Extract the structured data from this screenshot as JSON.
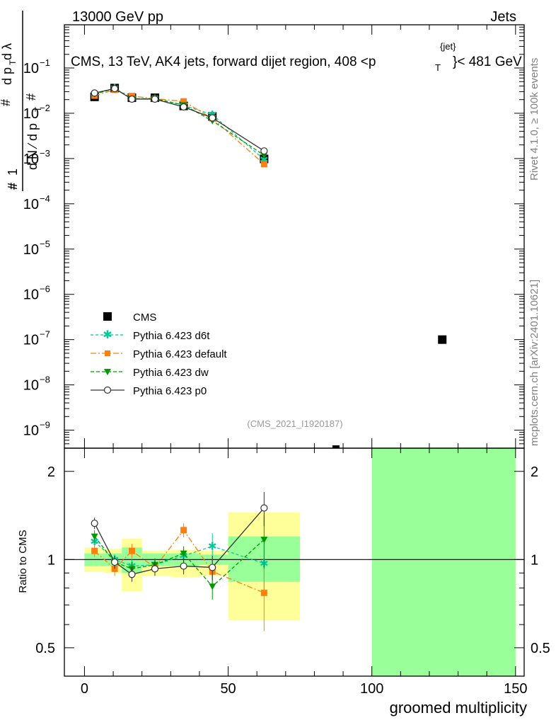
{
  "header": {
    "left": "13000 GeV pp",
    "right": "Jets",
    "subtitle": "CMS, 13 TeV, AK4 jets, forward dijet region, 408 <p_T^{jet}< 481 GeV"
  },
  "side": {
    "rivet": "Rivet 4.1.0, ≥ 100k events",
    "mcplots": "mcplots.cern.ch [arXiv:2401.10621]"
  },
  "watermark": "(CMS_2021_I1920187)",
  "colors": {
    "data": "#000000",
    "d6t": "#00cc99",
    "default": "#ff7f0e",
    "dw": "#009900",
    "p0": "#333333",
    "band_yellow": "#ffff99",
    "band_green": "#99ff99"
  },
  "chart_data": [
    {
      "type": "scatter",
      "panel": "main",
      "title": "CMS, 13 TeV, AK4 jets, forward dijet region, 408 <p_T^{jet}< 481 GeV",
      "ylabel": "1/dN/dp_T  d²N/dp_T dλ",
      "yscale": "log",
      "xlim": [
        -7,
        153
      ],
      "ylim": [
        4e-10,
        0.9
      ],
      "ytick_labels": [
        "10^{-9}",
        "10^{-8}",
        "10^{-7}",
        "10^{-6}",
        "10^{-5}",
        "10^{-4}",
        "10^{-3}",
        "10^{-2}",
        "10^{-1}"
      ],
      "ytick_values": [
        1e-09,
        1e-08,
        1e-07,
        1e-06,
        1e-05,
        0.0001,
        0.001,
        0.01,
        0.1
      ],
      "legend": [
        "CMS",
        "Pythia 6.423 d6t",
        "Pythia 6.423 default",
        "Pythia 6.423 dw",
        "Pythia 6.423 p0"
      ],
      "series": [
        {
          "name": "CMS",
          "style": "square",
          "x": [
            3.5,
            10.5,
            16.5,
            24.5,
            34.5,
            44.5,
            62.5,
            87.5,
            124.5
          ],
          "y": [
            0.023,
            0.036,
            0.022,
            0.022,
            0.0145,
            0.0085,
            0.00098,
            3.6e-10,
            1e-07
          ]
        },
        {
          "name": "Pythia 6.423 d6t",
          "style": "star",
          "dash": "4,3",
          "x": [
            3.5,
            10.5,
            16.5,
            24.5,
            34.5,
            44.5,
            62.5
          ],
          "y": [
            0.027,
            0.036,
            0.021,
            0.021,
            0.015,
            0.0093,
            0.00095
          ]
        },
        {
          "name": "Pythia 6.423 default",
          "style": "fsquare",
          "dash": "8,3,2,3",
          "x": [
            3.5,
            10.5,
            16.5,
            24.5,
            34.5,
            44.5,
            62.5
          ],
          "y": [
            0.0245,
            0.033,
            0.024,
            0.021,
            0.0183,
            0.0077,
            0.00075
          ]
        },
        {
          "name": "Pythia 6.423 dw",
          "style": "tri",
          "dash": "5,3",
          "x": [
            3.5,
            10.5,
            16.5,
            24.5,
            34.5,
            44.5,
            62.5
          ],
          "y": [
            0.0265,
            0.035,
            0.021,
            0.021,
            0.0152,
            0.0068,
            0.00118
          ]
        },
        {
          "name": "Pythia 6.423 p0",
          "style": "circle",
          "dash": "",
          "x": [
            3.5,
            10.5,
            16.5,
            24.5,
            34.5,
            44.5,
            62.5
          ],
          "y": [
            0.028,
            0.035,
            0.0205,
            0.0205,
            0.0138,
            0.0079,
            0.00147
          ]
        }
      ]
    },
    {
      "type": "scatter",
      "panel": "ratio",
      "xlabel": "groomed multiplicity",
      "ylabel": "Ratio to CMS",
      "yscale": "log",
      "xlim": [
        -7,
        153
      ],
      "ylim": [
        0.4,
        2.4
      ],
      "xtick_labels": [
        "0",
        "50",
        "100",
        "150"
      ],
      "xtick_values": [
        0,
        50,
        100,
        150
      ],
      "ytick_labels": [
        "0.5",
        "1",
        "2"
      ],
      "ytick_values": [
        0.5,
        1,
        2
      ],
      "bands": [
        {
          "x0": 0,
          "x1": 7,
          "yellow": [
            0.91,
            1.1
          ],
          "green": [
            0.95,
            1.05
          ]
        },
        {
          "x0": 7,
          "x1": 13,
          "yellow": [
            0.9,
            1.09
          ],
          "green": [
            0.95,
            1.05
          ]
        },
        {
          "x0": 13,
          "x1": 20,
          "yellow": [
            0.78,
            1.18
          ],
          "green": [
            0.9,
            1.1
          ]
        },
        {
          "x0": 20,
          "x1": 30,
          "yellow": [
            0.88,
            1.07
          ],
          "green": [
            0.95,
            1.05
          ]
        },
        {
          "x0": 30,
          "x1": 40,
          "yellow": [
            0.87,
            1.08
          ],
          "green": [
            0.95,
            1.05
          ]
        },
        {
          "x0": 40,
          "x1": 50,
          "yellow": [
            0.88,
            1.07
          ],
          "green": [
            0.96,
            1.04
          ]
        },
        {
          "x0": 50,
          "x1": 75,
          "yellow": [
            0.62,
            1.45
          ],
          "green": [
            0.84,
            1.2
          ]
        },
        {
          "x0": 100,
          "x1": 150,
          "yellow": [
            0.3,
            3.0
          ],
          "green": [
            0.3,
            3.0
          ]
        }
      ],
      "series": [
        {
          "name": "Pythia 6.423 d6t",
          "x": [
            3.5,
            10.5,
            16.5,
            24.5,
            34.5,
            44.5,
            62.5
          ],
          "y": [
            1.15,
            1.0,
            0.95,
            0.96,
            1.03,
            1.11,
            0.97
          ],
          "err": [
            0.06,
            0.04,
            0.05,
            0.05,
            0.06,
            0.12,
            0.22
          ]
        },
        {
          "name": "Pythia 6.423 default",
          "x": [
            3.5,
            10.5,
            16.5,
            24.5,
            34.5,
            44.5,
            62.5
          ],
          "y": [
            1.07,
            0.93,
            1.07,
            0.94,
            1.26,
            0.91,
            0.77
          ],
          "err": [
            0.05,
            0.05,
            0.06,
            0.05,
            0.07,
            0.1,
            0.2
          ]
        },
        {
          "name": "Pythia 6.423 dw",
          "x": [
            3.5,
            10.5,
            16.5,
            24.5,
            34.5,
            44.5,
            62.5
          ],
          "y": [
            1.2,
            0.98,
            0.93,
            0.96,
            1.05,
            0.81,
            1.17
          ],
          "err": [
            0.06,
            0.04,
            0.05,
            0.05,
            0.06,
            0.08,
            0.24
          ]
        },
        {
          "name": "Pythia 6.423 p0",
          "x": [
            3.5,
            10.5,
            16.5,
            24.5,
            34.5,
            44.5,
            62.5
          ],
          "y": [
            1.33,
            0.98,
            0.89,
            0.93,
            0.95,
            0.94,
            1.5
          ],
          "err": [
            0.06,
            0.05,
            0.05,
            0.05,
            0.06,
            0.09,
            0.2
          ]
        }
      ]
    }
  ]
}
